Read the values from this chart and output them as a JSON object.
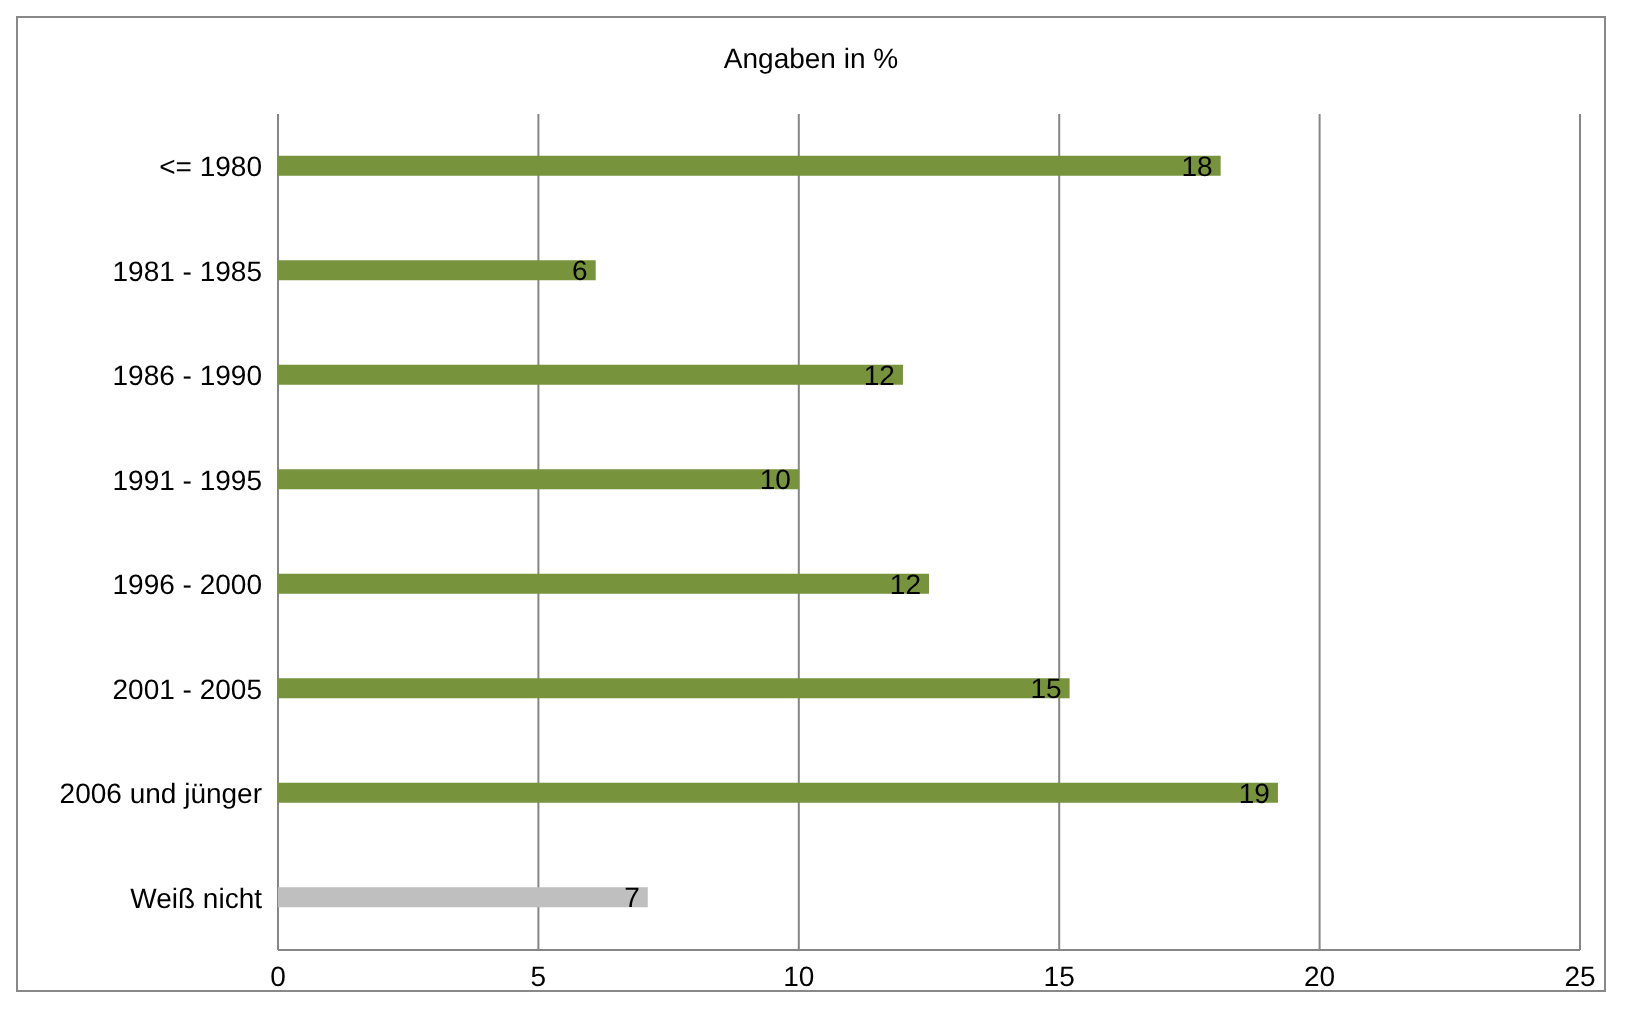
{
  "chart_data": {
    "type": "bar",
    "orientation": "horizontal",
    "title": "Angaben in %",
    "categories": [
      "<= 1980",
      "1981 - 1985",
      "1986 - 1990",
      "1991 - 1995",
      "1996 - 2000",
      "2001 - 2005",
      "2006 und jünger",
      "Weiß nicht"
    ],
    "values": [
      18.1,
      6.1,
      12.0,
      10.0,
      12.5,
      15.2,
      19.2,
      7.1
    ],
    "value_labels": [
      "18",
      "6",
      "12",
      "10",
      "12",
      "15",
      "19",
      "7"
    ],
    "colors": [
      "#77933c",
      "#77933c",
      "#77933c",
      "#77933c",
      "#77933c",
      "#77933c",
      "#77933c",
      "#bfbfbf"
    ],
    "xlim": [
      0,
      25
    ],
    "xticks": [
      0,
      5,
      10,
      15,
      20,
      25
    ],
    "grid": "x",
    "legend": false
  }
}
